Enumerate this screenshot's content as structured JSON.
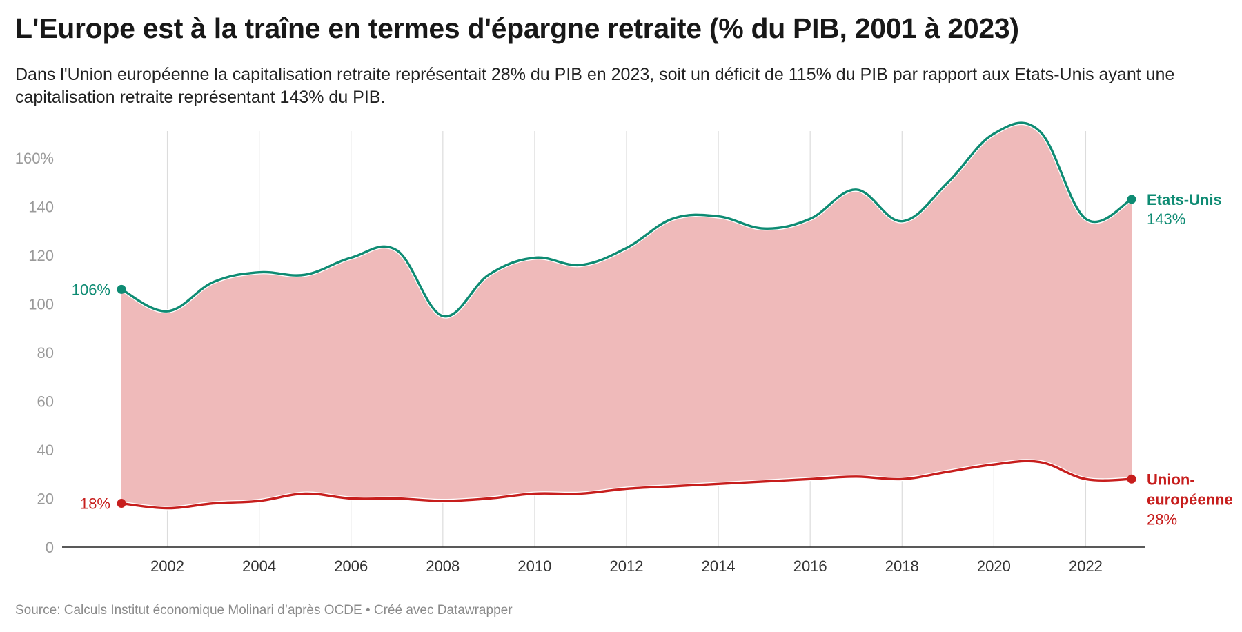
{
  "title": "L'Europe est à la traîne en termes d'épargne retraite (% du PIB, 2001 à 2023)",
  "subtitle": "Dans l'Union européenne la capitalisation retraite représentait 28% du PIB en 2023, soit un déficit de 115% du PIB par rapport aux Etats-Unis ayant une capitalisation retraite représentant 143% du PIB.",
  "footer": "Source: Calculs Institut économique Molinari d’après OCDE • Créé avec Datawrapper",
  "chart_data": {
    "type": "area",
    "x": [
      2001,
      2002,
      2003,
      2004,
      2005,
      2006,
      2007,
      2008,
      2009,
      2010,
      2011,
      2012,
      2013,
      2014,
      2015,
      2016,
      2017,
      2018,
      2019,
      2020,
      2021,
      2022,
      2023
    ],
    "series": [
      {
        "name": "Etats-Unis",
        "color": "#0e8b73",
        "values": [
          106,
          97,
          109,
          113,
          112,
          119,
          122,
          95,
          112,
          119,
          116,
          123,
          135,
          136,
          131,
          135,
          147,
          134,
          150,
          170,
          171,
          135,
          143
        ],
        "start_label": "106%",
        "end_label": "143%"
      },
      {
        "name": "Union-européenne",
        "name_lines": [
          "Union-",
          "européenne"
        ],
        "color": "#c71e1d",
        "values": [
          18,
          16,
          18,
          19,
          22,
          20,
          20,
          19,
          20,
          22,
          22,
          24,
          25,
          26,
          27,
          28,
          29,
          28,
          31,
          34,
          35,
          28,
          28
        ],
        "start_label": "18%",
        "end_label": "28%"
      }
    ],
    "fill_between_color": "#efbaba",
    "ylim": [
      0,
      170
    ],
    "y_ticks": [
      0,
      20,
      40,
      60,
      80,
      100,
      120,
      140,
      160
    ],
    "y_tick_labels": [
      "0",
      "20",
      "40",
      "60",
      "80",
      "100",
      "120",
      "140",
      "160%"
    ],
    "x_ticks": [
      2002,
      2004,
      2006,
      2008,
      2010,
      2012,
      2014,
      2016,
      2018,
      2020,
      2022
    ],
    "x_tick_labels": [
      "2002",
      "2004",
      "2006",
      "2008",
      "2010",
      "2012",
      "2014",
      "2016",
      "2018",
      "2020",
      "2022"
    ],
    "grid": "vertical",
    "xlabel": "",
    "ylabel": ""
  }
}
